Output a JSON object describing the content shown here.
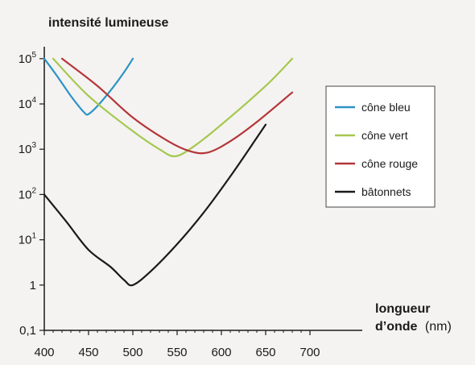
{
  "chart_data": {
    "type": "line",
    "ylabel": "intensité lumineuse",
    "xlabel_line1": "longueur",
    "xlabel_line2": "d’onde",
    "xlabel_unit": "(nm)",
    "y_scale": "log",
    "xlim": [
      400,
      700
    ],
    "ylim": [
      0.1,
      100000
    ],
    "grid": false,
    "legend_position": "right",
    "x_ticks": [
      400,
      450,
      500,
      550,
      600,
      650,
      700
    ],
    "y_ticks": [
      {
        "value": 0.1,
        "base": "0,1",
        "exp": ""
      },
      {
        "value": 1,
        "base": "1",
        "exp": ""
      },
      {
        "value": 10,
        "base": "10",
        "exp": "1"
      },
      {
        "value": 100,
        "base": "10",
        "exp": "2"
      },
      {
        "value": 1000,
        "base": "10",
        "exp": "3"
      },
      {
        "value": 10000,
        "base": "10",
        "exp": "4"
      },
      {
        "value": 100000,
        "base": "10",
        "exp": "5"
      }
    ],
    "series": [
      {
        "name": "cône bleu",
        "color": "#2c93c6",
        "x": [
          400,
          415,
          430,
          445,
          450,
          460,
          475,
          490,
          500
        ],
        "y": [
          100000,
          40000,
          15000,
          6500,
          6000,
          9000,
          20000,
          50000,
          100000
        ]
      },
      {
        "name": "cône vert",
        "color": "#a5c850",
        "x": [
          410,
          450,
          500,
          530,
          548,
          570,
          600,
          650,
          680
        ],
        "y": [
          100000,
          15000,
          2500,
          1000,
          700,
          1200,
          3500,
          25000,
          100000
        ]
      },
      {
        "name": "cône rouge",
        "color": "#b4363a",
        "x": [
          420,
          460,
          500,
          540,
          565,
          585,
          610,
          640,
          680
        ],
        "y": [
          100000,
          25000,
          5000,
          1500,
          900,
          850,
          1500,
          4000,
          18000
        ]
      },
      {
        "name": "bâtonnets",
        "color": "#1a1a1a",
        "x": [
          400,
          425,
          450,
          475,
          490,
          500,
          520,
          550,
          580,
          610,
          640,
          650
        ],
        "y": [
          100,
          25,
          6,
          2.5,
          1.3,
          1.0,
          2,
          8,
          40,
          250,
          1800,
          3500
        ]
      }
    ]
  }
}
